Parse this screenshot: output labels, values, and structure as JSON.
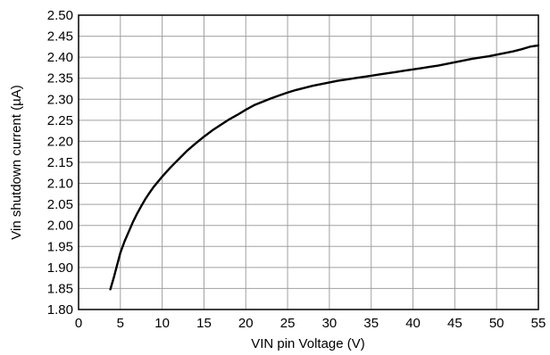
{
  "chart_data": {
    "type": "line",
    "title": "",
    "xlabel": "VIN pin Voltage (V)",
    "ylabel": "Vin shutdown current (µA)",
    "xlim": [
      0,
      55
    ],
    "ylim": [
      1.8,
      2.5
    ],
    "xticks": [
      "0",
      "5",
      "10",
      "15",
      "20",
      "25",
      "30",
      "35",
      "40",
      "45",
      "50",
      "55"
    ],
    "yticks": [
      "1.80",
      "1.85",
      "1.90",
      "1.95",
      "2.00",
      "2.05",
      "2.10",
      "2.15",
      "2.20",
      "2.25",
      "2.30",
      "2.35",
      "2.40",
      "2.45",
      "2.50"
    ],
    "grid": true,
    "legend": "none",
    "series": [
      {
        "color": "#000000",
        "x": [
          3.8,
          4.2,
          4.6,
          5.0,
          5.5,
          6.0,
          6.5,
          7.0,
          7.5,
          8.0,
          8.5,
          9.0,
          9.5,
          10.0,
          10.5,
          11.0,
          11.5,
          12.0,
          13.0,
          14.0,
          15.0,
          16.0,
          17.0,
          18.0,
          19.0,
          20.0,
          21.0,
          22.0,
          23.0,
          24.0,
          25.0,
          26.0,
          27.0,
          28.0,
          29.0,
          30.0,
          31.0,
          32.0,
          33.0,
          34.0,
          35.0,
          36.0,
          37.0,
          38.0,
          39.0,
          40.0,
          41.0,
          42.0,
          43.0,
          44.0,
          45.0,
          46.0,
          47.0,
          48.0,
          49.0,
          50.0,
          51.0,
          52.0,
          53.0,
          54.0,
          55.0
        ],
        "values": [
          1.848,
          1.875,
          1.905,
          1.935,
          1.962,
          1.985,
          2.008,
          2.028,
          2.046,
          2.063,
          2.078,
          2.092,
          2.104,
          2.116,
          2.127,
          2.138,
          2.148,
          2.158,
          2.178,
          2.195,
          2.211,
          2.226,
          2.239,
          2.252,
          2.263,
          2.275,
          2.286,
          2.294,
          2.302,
          2.309,
          2.316,
          2.322,
          2.327,
          2.332,
          2.336,
          2.34,
          2.344,
          2.347,
          2.35,
          2.353,
          2.356,
          2.359,
          2.362,
          2.365,
          2.368,
          2.371,
          2.374,
          2.377,
          2.38,
          2.384,
          2.388,
          2.392,
          2.396,
          2.399,
          2.402,
          2.406,
          2.41,
          2.414,
          2.419,
          2.425,
          2.428
        ]
      }
    ]
  }
}
